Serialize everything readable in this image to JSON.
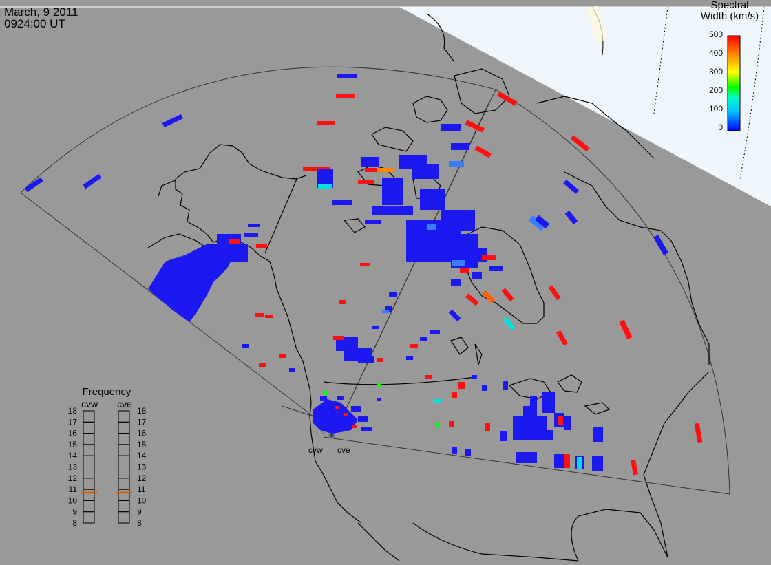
{
  "header": {
    "date": "March, 9 2011",
    "time": "0924:00 UT"
  },
  "colorbar": {
    "title_line1": "Spectral",
    "title_line2": "Width (km/s)",
    "ticks": [
      "500",
      "400",
      "300",
      "200",
      "100",
      "0"
    ]
  },
  "frequency_panel": {
    "title": "Frequency",
    "left_radar": "cvw",
    "right_radar": "cve",
    "ticks": [
      "18",
      "17",
      "16",
      "15",
      "14",
      "13",
      "12",
      "11",
      "10",
      "9",
      "8"
    ],
    "cvw_mhz": 10.7,
    "cve_mhz": 10.7,
    "range_mhz": [
      8,
      18
    ]
  },
  "radars": {
    "west": "cvw",
    "east": "cve"
  },
  "colors": {
    "background": "#999999",
    "daylight": "#eef6fb",
    "land_edge": "#000000",
    "marker": "#e05a00"
  }
}
